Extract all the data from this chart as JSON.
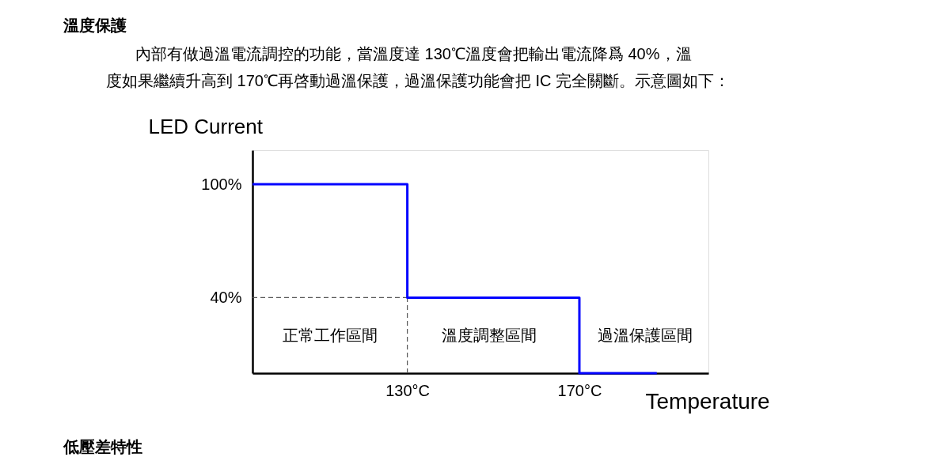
{
  "chart_data": {
    "type": "step",
    "title": "溫度保護",
    "subtitle": "內部有做過溫電流調控的功能，當溫度達 130℃溫度會把輸出電流降爲 40%，溫度如果繼續升高到 170℃再啓動過溫保護，過溫保護功能會把 IC 完全關斷。示意圖如下：",
    "xlabel": "Temperature",
    "ylabel": "LED Current",
    "x": [
      94,
      130,
      170,
      188
    ],
    "series": [
      {
        "color": "#0000ff",
        "values": [
          100,
          40,
          0,
          0
        ]
      }
    ],
    "xlim": [
      94,
      200
    ],
    "xticks": [
      {
        "value": 130,
        "label": "130°C"
      },
      {
        "value": 170,
        "label": "170°C"
      }
    ],
    "ylim": [
      0,
      118
    ],
    "yticks": [
      {
        "value": 100,
        "label": "100%"
      },
      {
        "value": 40,
        "label": "40%"
      }
    ],
    "grid": false,
    "ref_lines": [
      {
        "axis": "y",
        "value": 40,
        "line_style": "dashed",
        "color": "#555555"
      },
      {
        "axis": "x",
        "value": 130,
        "line_style": "dashed",
        "color": "#555555"
      }
    ],
    "annotations": [
      "正常工作區間",
      "溫度調整區間",
      "過溫保護區間",
      "低壓差特性"
    ]
  }
}
